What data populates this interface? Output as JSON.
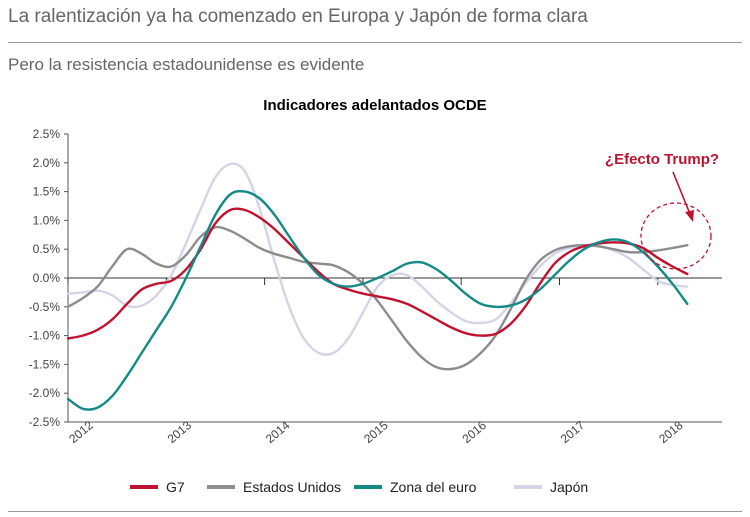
{
  "header": {
    "headline": "La ralentización ya ha comenzado en Europa y Japón de forma clara",
    "subtitle": "Pero la resistencia estadounidense es evidente"
  },
  "chart_data": {
    "type": "line",
    "title": "Indicadores adelantados OCDE",
    "ylim": [
      -2.5,
      2.5
    ],
    "y_ticks": [
      "2.5%",
      "2.0%",
      "1.5%",
      "1.0%",
      "0.5%",
      "0.0%",
      "-0.5%",
      "-1.0%",
      "-1.5%",
      "-2.0%",
      "-2.5%"
    ],
    "x_ticks": [
      "2012",
      "2013",
      "2014",
      "2015",
      "2016",
      "2017",
      "2018"
    ],
    "xlim": [
      2012,
      2018.75
    ],
    "annotation": "¿Efecto Trump?",
    "grid": false,
    "legend_position": "bottom",
    "series": [
      {
        "name": "G7",
        "color": "#c0122f",
        "x": [
          2012.0,
          2012.15,
          2012.3,
          2012.45,
          2012.6,
          2012.75,
          2012.9,
          2013.05,
          2013.2,
          2013.35,
          2013.5,
          2013.65,
          2013.8,
          2013.95,
          2014.1,
          2014.25,
          2014.4,
          2014.55,
          2014.7,
          2014.85,
          2015.0,
          2015.15,
          2015.3,
          2015.45,
          2015.6,
          2015.75,
          2015.9,
          2016.05,
          2016.2,
          2016.35,
          2016.5,
          2016.65,
          2016.8,
          2016.95,
          2017.1,
          2017.25,
          2017.4,
          2017.55,
          2017.7,
          2017.85,
          2018.0,
          2018.15,
          2018.3
        ],
        "values": [
          -1.05,
          -1.0,
          -0.9,
          -0.72,
          -0.45,
          -0.2,
          -0.1,
          -0.05,
          0.15,
          0.5,
          0.95,
          1.18,
          1.18,
          1.05,
          0.85,
          0.6,
          0.35,
          0.1,
          -0.1,
          -0.2,
          -0.27,
          -0.32,
          -0.37,
          -0.45,
          -0.58,
          -0.72,
          -0.86,
          -0.96,
          -1.0,
          -0.97,
          -0.8,
          -0.5,
          -0.1,
          0.25,
          0.45,
          0.55,
          0.6,
          0.62,
          0.6,
          0.52,
          0.35,
          0.2,
          0.07
        ]
      },
      {
        "name": "Estados Unidos",
        "color": "#8c8c8c",
        "x": [
          2012.0,
          2012.15,
          2012.3,
          2012.45,
          2012.6,
          2012.75,
          2012.9,
          2013.05,
          2013.2,
          2013.35,
          2013.5,
          2013.65,
          2013.8,
          2013.95,
          2014.1,
          2014.25,
          2014.4,
          2014.55,
          2014.7,
          2014.85,
          2015.0,
          2015.15,
          2015.3,
          2015.45,
          2015.6,
          2015.75,
          2015.9,
          2016.05,
          2016.2,
          2016.35,
          2016.5,
          2016.65,
          2016.8,
          2016.95,
          2017.1,
          2017.25,
          2017.4,
          2017.55,
          2017.7,
          2017.85,
          2018.0,
          2018.15,
          2018.3
        ],
        "values": [
          -0.5,
          -0.35,
          -0.15,
          0.2,
          0.5,
          0.42,
          0.25,
          0.2,
          0.4,
          0.72,
          0.88,
          0.82,
          0.68,
          0.52,
          0.42,
          0.35,
          0.28,
          0.25,
          0.22,
          0.1,
          -0.1,
          -0.4,
          -0.75,
          -1.1,
          -1.38,
          -1.55,
          -1.58,
          -1.5,
          -1.3,
          -1.0,
          -0.55,
          -0.05,
          0.3,
          0.48,
          0.55,
          0.57,
          0.55,
          0.5,
          0.45,
          0.45,
          0.48,
          0.52,
          0.57
        ]
      },
      {
        "name": "Zona del euro",
        "color": "#138a86",
        "x": [
          2012.0,
          2012.15,
          2012.3,
          2012.45,
          2012.6,
          2012.75,
          2012.9,
          2013.05,
          2013.2,
          2013.35,
          2013.5,
          2013.65,
          2013.8,
          2013.95,
          2014.1,
          2014.25,
          2014.4,
          2014.55,
          2014.7,
          2014.85,
          2015.0,
          2015.15,
          2015.3,
          2015.45,
          2015.6,
          2015.75,
          2015.9,
          2016.05,
          2016.2,
          2016.35,
          2016.5,
          2016.65,
          2016.8,
          2016.95,
          2017.1,
          2017.25,
          2017.4,
          2017.55,
          2017.7,
          2017.85,
          2018.0,
          2018.15,
          2018.3
        ],
        "values": [
          -2.1,
          -2.27,
          -2.25,
          -2.05,
          -1.7,
          -1.3,
          -0.9,
          -0.5,
          0.0,
          0.55,
          1.1,
          1.45,
          1.5,
          1.38,
          1.1,
          0.72,
          0.35,
          0.05,
          -0.1,
          -0.15,
          -0.1,
          0.0,
          0.12,
          0.25,
          0.27,
          0.15,
          -0.05,
          -0.28,
          -0.45,
          -0.5,
          -0.48,
          -0.38,
          -0.2,
          0.05,
          0.3,
          0.5,
          0.62,
          0.67,
          0.62,
          0.45,
          0.2,
          -0.1,
          -0.45
        ]
      },
      {
        "name": "Japón",
        "color": "#d4d4e8",
        "x": [
          2012.0,
          2012.15,
          2012.3,
          2012.45,
          2012.6,
          2012.75,
          2012.9,
          2013.05,
          2013.2,
          2013.35,
          2013.5,
          2013.65,
          2013.8,
          2013.95,
          2014.1,
          2014.25,
          2014.4,
          2014.55,
          2014.7,
          2014.85,
          2015.0,
          2015.15,
          2015.3,
          2015.45,
          2015.6,
          2015.75,
          2015.9,
          2016.05,
          2016.2,
          2016.35,
          2016.5,
          2016.65,
          2016.8,
          2016.95,
          2017.1,
          2017.25,
          2017.4,
          2017.55,
          2017.7,
          2017.85,
          2018.0,
          2018.15,
          2018.3
        ],
        "values": [
          -0.27,
          -0.25,
          -0.22,
          -0.3,
          -0.48,
          -0.48,
          -0.3,
          0.05,
          0.6,
          1.2,
          1.75,
          1.98,
          1.85,
          1.2,
          0.3,
          -0.5,
          -1.05,
          -1.3,
          -1.3,
          -1.05,
          -0.6,
          -0.15,
          0.05,
          0.05,
          -0.15,
          -0.4,
          -0.6,
          -0.75,
          -0.78,
          -0.72,
          -0.45,
          -0.1,
          0.2,
          0.42,
          0.52,
          0.55,
          0.55,
          0.48,
          0.35,
          0.15,
          -0.05,
          -0.12,
          -0.15
        ]
      }
    ]
  }
}
